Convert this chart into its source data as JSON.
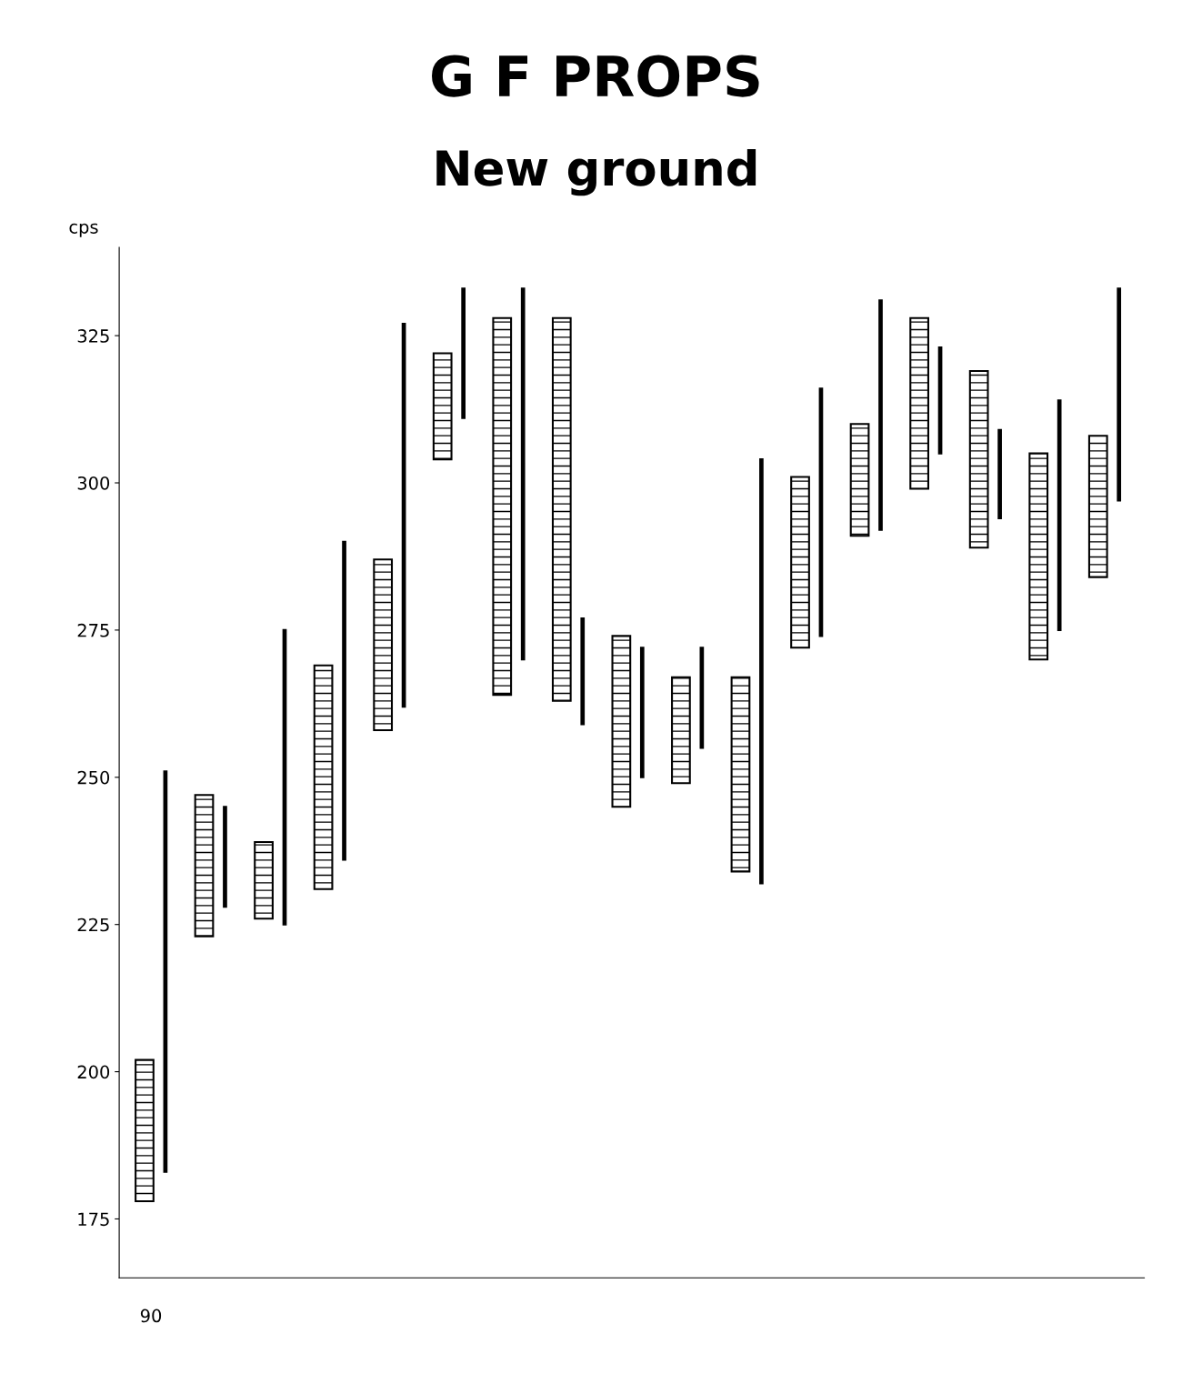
{
  "chart_data": {
    "type": "bar",
    "title": "G F PROPS",
    "subtitle": "New ground",
    "ylabel": "cps",
    "categories": [
      null,
      null,
      null,
      null,
      null,
      null,
      null,
      null,
      null,
      null,
      null,
      null,
      null,
      null,
      null,
      null,
      null
    ],
    "series": [
      {
        "color": "#000000",
        "base": [
          178,
          223,
          226,
          231,
          258,
          304,
          264,
          263,
          245,
          249,
          234,
          272,
          291,
          299,
          289,
          270,
          284
        ],
        "values": [
          24,
          24,
          13,
          38,
          29,
          18,
          64,
          65,
          29,
          18,
          33,
          29,
          19,
          29,
          30,
          35,
          24
        ]
      },
      {
        "color": "#000000",
        "base": [
          183,
          228,
          225,
          236,
          262,
          311,
          270,
          259,
          250,
          255,
          232,
          274,
          292,
          305,
          294,
          275,
          297
        ],
        "values": [
          68,
          17,
          50,
          54,
          65,
          22,
          63,
          18,
          22,
          17,
          72,
          42,
          39,
          18,
          15,
          39,
          36
        ]
      }
    ],
    "ylim": [
      165,
      340
    ],
    "yticks": [
      175,
      200,
      225,
      250,
      275,
      300,
      325
    ],
    "tick_labels": "y",
    "grid": false,
    "annotations": [
      "90"
    ]
  }
}
